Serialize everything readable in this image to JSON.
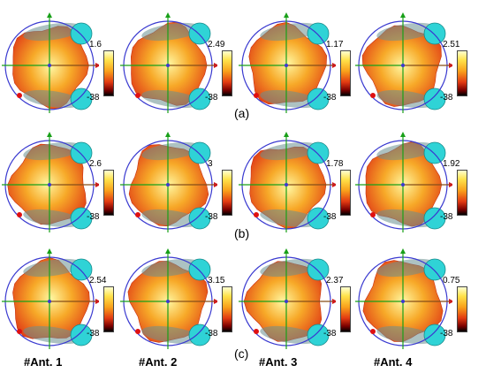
{
  "rows": [
    {
      "label": "(a)",
      "panels": [
        {
          "max": "1.6",
          "min": "-38"
        },
        {
          "max": "2.49",
          "min": "-38"
        },
        {
          "max": "1.17",
          "min": "-38"
        },
        {
          "max": "2.51",
          "min": "-38"
        }
      ]
    },
    {
      "label": "(b)",
      "panels": [
        {
          "max": "2.6",
          "min": "-38"
        },
        {
          "max": "3",
          "min": "-38"
        },
        {
          "max": "1.78",
          "min": "-38"
        },
        {
          "max": "1.92",
          "min": "-38"
        }
      ]
    },
    {
      "label": "(c)",
      "panels": [
        {
          "max": "2.54",
          "min": "-38"
        },
        {
          "max": "3.15",
          "min": "-38"
        },
        {
          "max": "2.37",
          "min": "-38"
        },
        {
          "max": "0.75",
          "min": "-38"
        }
      ]
    }
  ],
  "column_labels": [
    "#Ant. 1",
    "#Ant. 2",
    "#Ant. 3",
    "#Ant. 4"
  ],
  "colors": {
    "hand": "#2fd3d6",
    "pattern_high": "#fff6a0",
    "pattern_mid": "#f7a928",
    "pattern_low": "#e03a16",
    "circle": "#3a3ad0",
    "axis_x": "#18a018",
    "axis_y": "#18a018",
    "axis_z": "#d01818"
  }
}
